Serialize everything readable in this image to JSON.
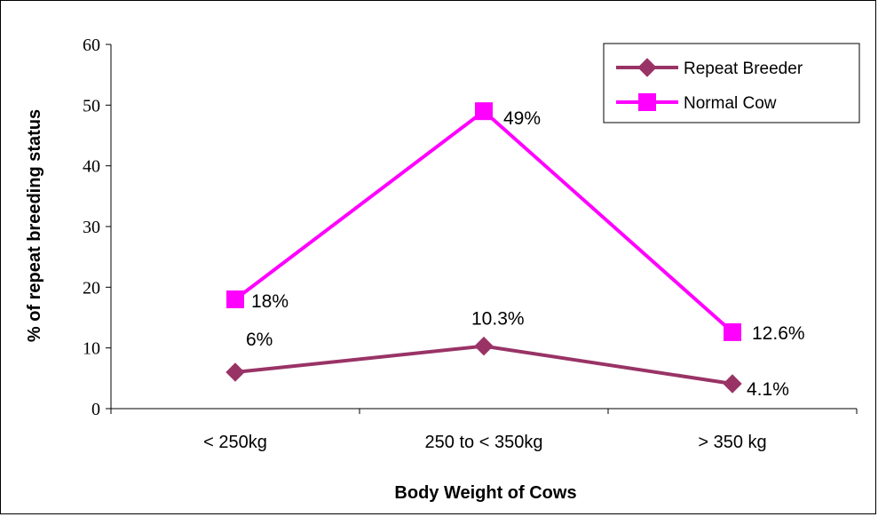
{
  "chart_data": {
    "type": "line",
    "title": "",
    "xlabel": "Body Weight of Cows",
    "ylabel": "% of repeat breeding status",
    "categories": [
      "< 250kg",
      "250 to < 350kg",
      "> 350 kg"
    ],
    "ylim": [
      0,
      60
    ],
    "yticks": [
      0,
      10,
      20,
      30,
      40,
      50,
      60
    ],
    "grid": false,
    "legend_position": "top-right",
    "series": [
      {
        "name": "Repeat Breeder",
        "values": [
          6,
          10.3,
          4.1
        ],
        "labels": [
          "6%",
          "10.3%",
          "4.1%"
        ],
        "color": "#993366",
        "marker": "diamond"
      },
      {
        "name": "Normal Cow",
        "values": [
          18,
          49,
          12.6
        ],
        "labels": [
          "18%",
          "49%",
          "12.6%"
        ],
        "color": "#FF00FF",
        "marker": "square"
      }
    ]
  }
}
